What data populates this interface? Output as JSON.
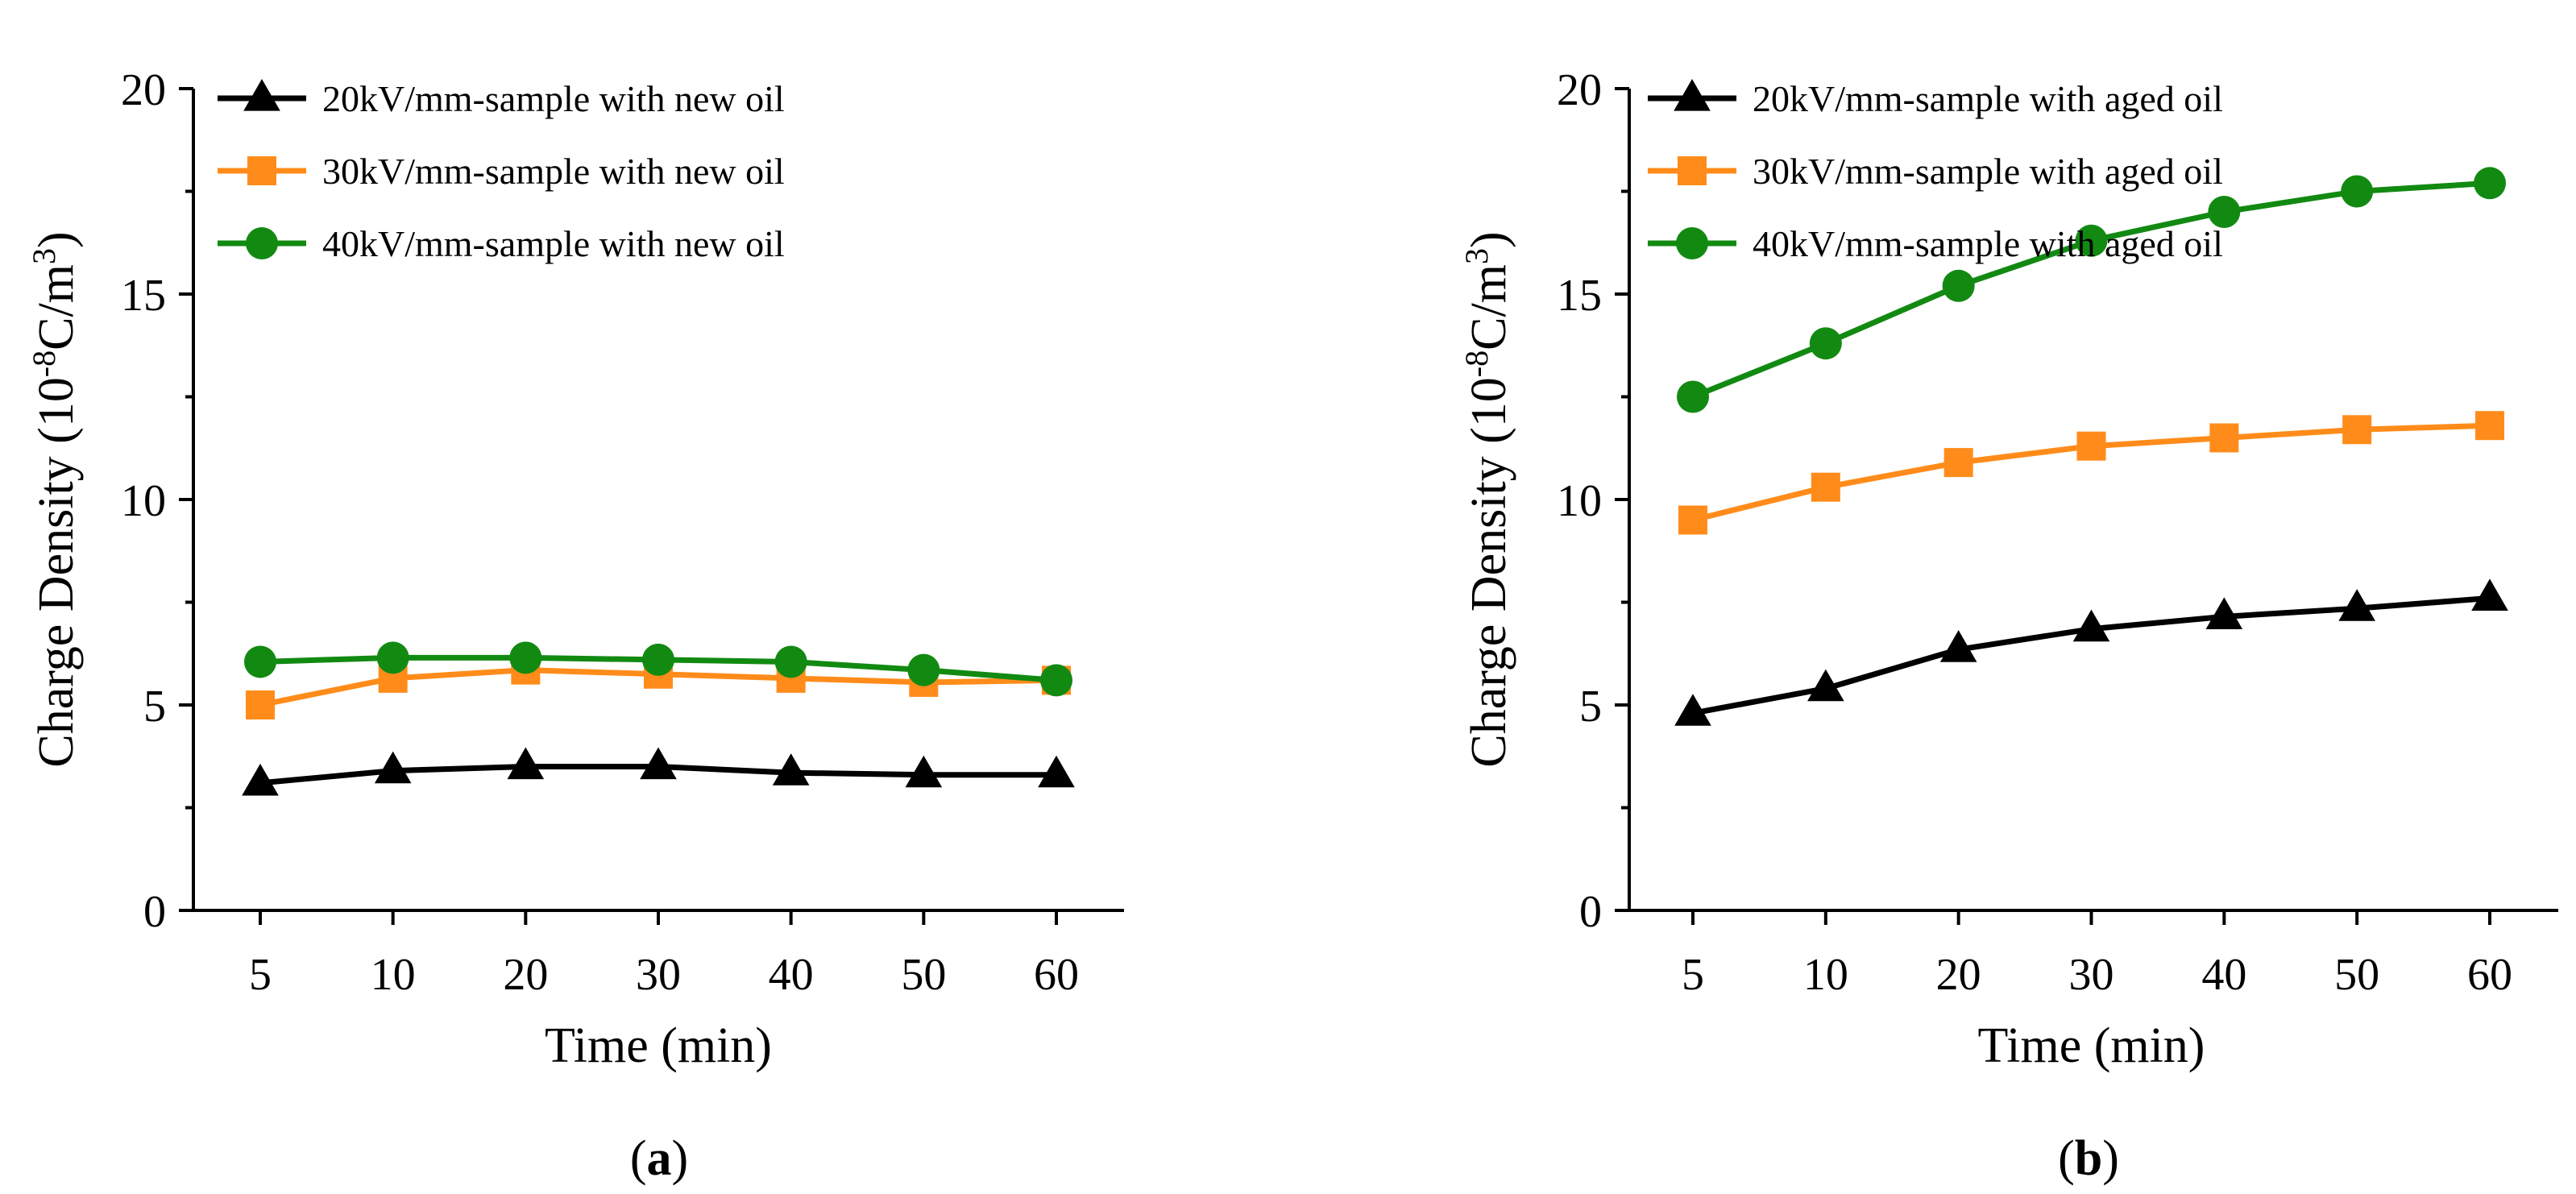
{
  "chart_data": [
    {
      "type": "line",
      "panel_label_open": "(",
      "panel_letter": "a",
      "panel_label_close": ")",
      "xlabel": "Time (min)",
      "ylabel_prefix": "Charge Density (10",
      "ylabel_exp1": "-8",
      "ylabel_mid": "C/m",
      "ylabel_exp2": "3",
      "ylabel_suffix": ")",
      "categories": [
        "5",
        "10",
        "20",
        "30",
        "40",
        "50",
        "60"
      ],
      "ylim": [
        0,
        20
      ],
      "yticks": [
        "0",
        "5",
        "10",
        "15",
        "20"
      ],
      "legend_position": "top-left",
      "grid": false,
      "series": [
        {
          "name": "20kV/mm-sample with new oil",
          "color": "#000000",
          "marker": "triangle",
          "values": [
            3.1,
            3.4,
            3.5,
            3.5,
            3.35,
            3.3,
            3.3
          ]
        },
        {
          "name": "30kV/mm-sample with new oil",
          "color": "#ff8c1a",
          "marker": "square",
          "values": [
            5.0,
            5.65,
            5.85,
            5.75,
            5.65,
            5.55,
            5.6
          ]
        },
        {
          "name": "40kV/mm-sample with new oil",
          "color": "#128a12",
          "marker": "circle",
          "values": [
            6.05,
            6.15,
            6.15,
            6.1,
            6.05,
            5.85,
            5.6
          ]
        }
      ]
    },
    {
      "type": "line",
      "panel_label_open": "(",
      "panel_letter": "b",
      "panel_label_close": ")",
      "xlabel": "Time (min)",
      "ylabel_prefix": "Charge Density (10",
      "ylabel_exp1": "-8",
      "ylabel_mid": "C/m",
      "ylabel_exp2": "3",
      "ylabel_suffix": ")",
      "categories": [
        "5",
        "10",
        "20",
        "30",
        "40",
        "50",
        "60"
      ],
      "ylim": [
        0,
        20
      ],
      "yticks": [
        "0",
        "5",
        "10",
        "15",
        "20"
      ],
      "legend_position": "top-left",
      "grid": false,
      "series": [
        {
          "name": "20kV/mm-sample with aged oil",
          "color": "#000000",
          "marker": "triangle",
          "values": [
            4.8,
            5.4,
            6.35,
            6.85,
            7.15,
            7.35,
            7.6
          ]
        },
        {
          "name": "30kV/mm-sample with aged oil",
          "color": "#ff8c1a",
          "marker": "square",
          "values": [
            9.5,
            10.3,
            10.9,
            11.3,
            11.5,
            11.7,
            11.8
          ]
        },
        {
          "name": "40kV/mm-sample with aged oil",
          "color": "#128a12",
          "marker": "circle",
          "values": [
            12.5,
            13.8,
            15.2,
            16.3,
            17.0,
            17.5,
            17.7
          ]
        }
      ]
    }
  ]
}
